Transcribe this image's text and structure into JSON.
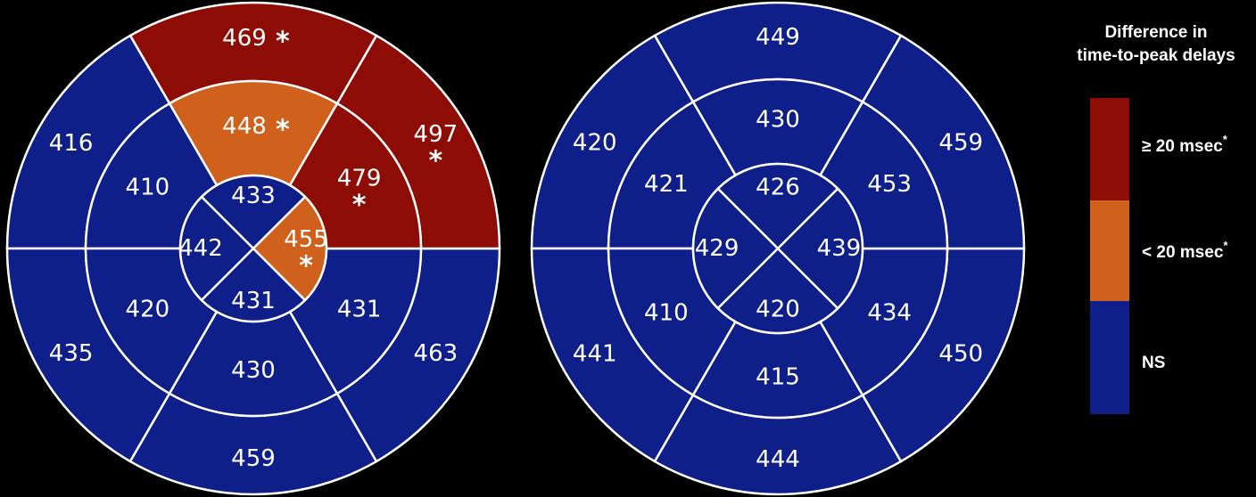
{
  "colors": {
    "ns": "#0f1f8a",
    "lt20": "#cf611c",
    "ge20": "#8e0c06",
    "background": "#000000",
    "outline": "#ffffff"
  },
  "maps": [
    {
      "name": "left-bullseye",
      "segments": [
        {
          "ring": "basal",
          "position": "anterior",
          "value": "469",
          "category": "ge20",
          "star": true
        },
        {
          "ring": "basal",
          "position": "anteroseptal",
          "value": "416",
          "category": "ns",
          "star": false
        },
        {
          "ring": "basal",
          "position": "inferoseptal",
          "value": "435",
          "category": "ns",
          "star": false
        },
        {
          "ring": "basal",
          "position": "inferior",
          "value": "459",
          "category": "ns",
          "star": false
        },
        {
          "ring": "basal",
          "position": "inferolateral",
          "value": "463",
          "category": "ns",
          "star": false
        },
        {
          "ring": "basal",
          "position": "anterolateral",
          "value": "497",
          "category": "ge20",
          "star": true
        },
        {
          "ring": "mid",
          "position": "anterior",
          "value": "448",
          "category": "lt20",
          "star": true
        },
        {
          "ring": "mid",
          "position": "anteroseptal",
          "value": "410",
          "category": "ns",
          "star": false
        },
        {
          "ring": "mid",
          "position": "inferoseptal",
          "value": "420",
          "category": "ns",
          "star": false
        },
        {
          "ring": "mid",
          "position": "inferior",
          "value": "430",
          "category": "ns",
          "star": false
        },
        {
          "ring": "mid",
          "position": "inferolateral",
          "value": "431",
          "category": "ns",
          "star": false
        },
        {
          "ring": "mid",
          "position": "anterolateral",
          "value": "479",
          "category": "ge20",
          "star": true
        },
        {
          "ring": "apical",
          "position": "anterior",
          "value": "433",
          "category": "ns",
          "star": false
        },
        {
          "ring": "apical",
          "position": "septal",
          "value": "442",
          "category": "ns",
          "star": false
        },
        {
          "ring": "apical",
          "position": "inferior",
          "value": "431",
          "category": "ns",
          "star": false
        },
        {
          "ring": "apical",
          "position": "lateral",
          "value": "455",
          "category": "lt20",
          "star": true
        }
      ]
    },
    {
      "name": "right-bullseye",
      "segments": [
        {
          "ring": "basal",
          "position": "anterior",
          "value": "449",
          "category": "ns",
          "star": false
        },
        {
          "ring": "basal",
          "position": "anteroseptal",
          "value": "420",
          "category": "ns",
          "star": false
        },
        {
          "ring": "basal",
          "position": "inferoseptal",
          "value": "441",
          "category": "ns",
          "star": false
        },
        {
          "ring": "basal",
          "position": "inferior",
          "value": "444",
          "category": "ns",
          "star": false
        },
        {
          "ring": "basal",
          "position": "inferolateral",
          "value": "450",
          "category": "ns",
          "star": false
        },
        {
          "ring": "basal",
          "position": "anterolateral",
          "value": "459",
          "category": "ns",
          "star": false
        },
        {
          "ring": "mid",
          "position": "anterior",
          "value": "430",
          "category": "ns",
          "star": false
        },
        {
          "ring": "mid",
          "position": "anteroseptal",
          "value": "421",
          "category": "ns",
          "star": false
        },
        {
          "ring": "mid",
          "position": "inferoseptal",
          "value": "410",
          "category": "ns",
          "star": false
        },
        {
          "ring": "mid",
          "position": "inferior",
          "value": "415",
          "category": "ns",
          "star": false
        },
        {
          "ring": "mid",
          "position": "inferolateral",
          "value": "434",
          "category": "ns",
          "star": false
        },
        {
          "ring": "mid",
          "position": "anterolateral",
          "value": "453",
          "category": "ns",
          "star": false
        },
        {
          "ring": "apical",
          "position": "anterior",
          "value": "426",
          "category": "ns",
          "star": false
        },
        {
          "ring": "apical",
          "position": "septal",
          "value": "429",
          "category": "ns",
          "star": false
        },
        {
          "ring": "apical",
          "position": "inferior",
          "value": "420",
          "category": "ns",
          "star": false
        },
        {
          "ring": "apical",
          "position": "lateral",
          "value": "439",
          "category": "ns",
          "star": false
        }
      ]
    }
  ],
  "legend": {
    "title_line1": "Difference in",
    "title_line2": "time-to-peak delays",
    "items": [
      {
        "category": "ge20",
        "label": "≥ 20 msec",
        "superscript": "*"
      },
      {
        "category": "lt20",
        "label": "< 20 msec",
        "superscript": "*"
      },
      {
        "category": "ns",
        "label": "NS",
        "superscript": ""
      }
    ]
  }
}
